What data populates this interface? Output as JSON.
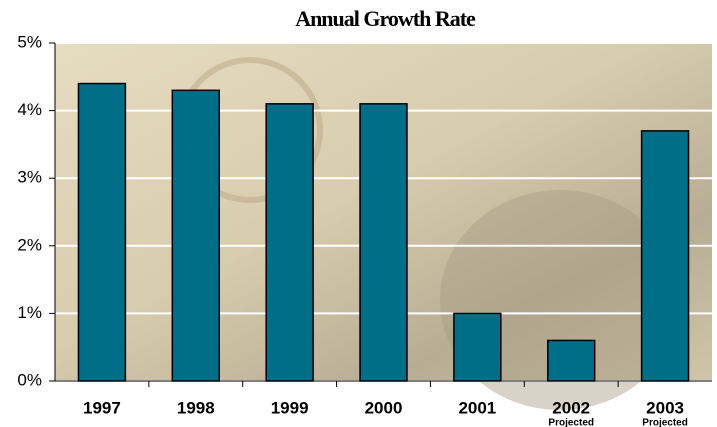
{
  "chart_data": {
    "type": "bar",
    "title": "Annual Growth Rate",
    "categories": [
      "1997",
      "1998",
      "1999",
      "2000",
      "2001",
      "2002",
      "2003"
    ],
    "category_sublabels": [
      null,
      null,
      null,
      null,
      null,
      "Projected",
      "Projected"
    ],
    "values": [
      4.4,
      4.3,
      4.1,
      4.1,
      1.0,
      0.6,
      3.7
    ],
    "color": "#006e87",
    "ylim": [
      0,
      5
    ],
    "yticks": [
      {
        "value": 0,
        "label": "0%"
      },
      {
        "value": 1,
        "label": "1%"
      },
      {
        "value": 2,
        "label": "2%"
      },
      {
        "value": 3,
        "label": "3%"
      },
      {
        "value": 4,
        "label": "4%"
      },
      {
        "value": 5,
        "label": "5%"
      }
    ],
    "grid": true
  }
}
